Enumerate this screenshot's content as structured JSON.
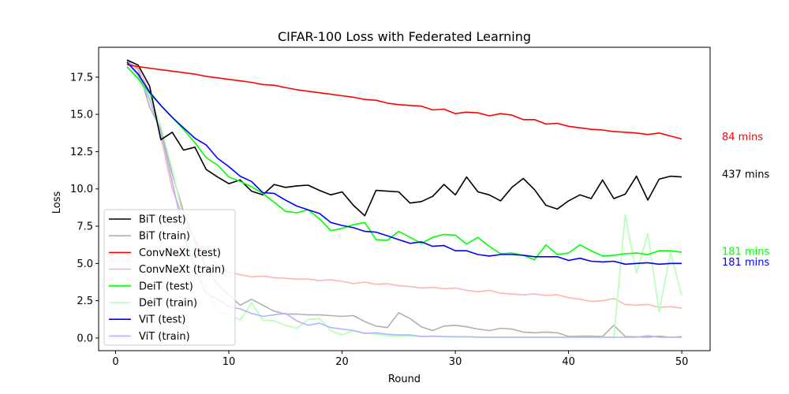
{
  "chart_data": {
    "type": "line",
    "title": "CIFAR-100 Loss with Federated Learning",
    "xlabel": "Round",
    "ylabel": "Loss",
    "xlim": [
      -1.5,
      52.5
    ],
    "ylim": [
      -0.85,
      19.5
    ],
    "xticks": [
      0,
      10,
      20,
      30,
      40,
      50
    ],
    "yticks": [
      0.0,
      2.5,
      5.0,
      7.5,
      10.0,
      12.5,
      15.0,
      17.5
    ],
    "xtick_labels": [
      "0",
      "10",
      "20",
      "30",
      "40",
      "50"
    ],
    "ytick_labels": [
      "0.0",
      "2.5",
      "5.0",
      "7.5",
      "10.0",
      "12.5",
      "15.0",
      "17.5"
    ],
    "grid": false,
    "legend_position": "lower-left",
    "x": [
      1,
      2,
      3,
      4,
      5,
      6,
      7,
      8,
      9,
      10,
      11,
      12,
      13,
      14,
      15,
      16,
      17,
      18,
      19,
      20,
      21,
      22,
      23,
      24,
      25,
      26,
      27,
      28,
      29,
      30,
      31,
      32,
      33,
      34,
      35,
      36,
      37,
      38,
      39,
      40,
      41,
      42,
      43,
      44,
      45,
      46,
      47,
      48,
      49,
      50
    ],
    "series": [
      {
        "name": "BiT (test)",
        "color": "#000000",
        "values": [
          18.65,
          18.3,
          16.9,
          13.3,
          13.8,
          12.6,
          12.8,
          11.3,
          10.8,
          10.35,
          10.6,
          9.85,
          9.6,
          10.3,
          10.1,
          10.2,
          10.25,
          9.9,
          9.6,
          9.8,
          8.9,
          8.2,
          9.9,
          9.85,
          9.8,
          9.05,
          9.15,
          9.5,
          10.3,
          9.6,
          10.8,
          9.8,
          9.6,
          9.2,
          10.1,
          10.7,
          9.95,
          8.9,
          8.65,
          9.2,
          9.6,
          9.35,
          10.6,
          9.35,
          9.65,
          10.85,
          9.25,
          10.65,
          10.85,
          10.8
        ]
      },
      {
        "name": "BiT (train)",
        "color": "#b0b0b0",
        "values": [
          18.6,
          18.0,
          15.5,
          14.0,
          11.0,
          8.5,
          6.5,
          4.7,
          3.6,
          2.9,
          2.2,
          2.6,
          2.2,
          1.8,
          1.6,
          1.6,
          1.55,
          1.55,
          1.5,
          1.45,
          1.5,
          1.1,
          0.8,
          0.7,
          1.7,
          1.3,
          0.75,
          0.5,
          0.8,
          0.85,
          0.75,
          0.6,
          0.5,
          0.65,
          0.6,
          0.4,
          0.35,
          0.4,
          0.35,
          0.1,
          0.12,
          0.12,
          0.1,
          0.85,
          0.1,
          0.08,
          0.05,
          0.12,
          0.05,
          0.05
        ]
      },
      {
        "name": "ConvNeXt (test)",
        "color": "#ff0000",
        "values": [
          18.35,
          18.2,
          18.1,
          18.0,
          17.9,
          17.8,
          17.7,
          17.55,
          17.45,
          17.35,
          17.25,
          17.15,
          17.0,
          16.95,
          16.8,
          16.65,
          16.55,
          16.45,
          16.35,
          16.25,
          16.15,
          16.0,
          15.95,
          15.75,
          15.65,
          15.6,
          15.55,
          15.3,
          15.35,
          15.05,
          15.15,
          15.1,
          14.9,
          15.05,
          14.95,
          14.65,
          14.65,
          14.35,
          14.4,
          14.2,
          14.1,
          14.0,
          13.95,
          13.85,
          13.8,
          13.75,
          13.65,
          13.75,
          13.55,
          13.35
        ]
      },
      {
        "name": "ConvNeXt (train)",
        "color": "#ffb3b3",
        "values": [
          18.35,
          18.1,
          16.5,
          13.5,
          10.0,
          8.0,
          6.6,
          5.6,
          4.9,
          4.4,
          4.25,
          4.1,
          4.15,
          4.05,
          4.0,
          3.95,
          3.95,
          3.85,
          3.9,
          3.8,
          3.65,
          3.75,
          3.6,
          3.65,
          3.5,
          3.45,
          3.35,
          3.4,
          3.3,
          3.35,
          3.2,
          3.1,
          3.2,
          3.0,
          2.95,
          2.9,
          2.95,
          2.85,
          2.9,
          2.7,
          2.6,
          2.45,
          2.5,
          2.65,
          2.25,
          2.2,
          2.25,
          2.05,
          2.1,
          2.0
        ]
      },
      {
        "name": "DeiT (test)",
        "color": "#00ff00",
        "values": [
          18.2,
          17.4,
          16.4,
          15.6,
          14.8,
          14.0,
          13.1,
          12.1,
          11.6,
          10.8,
          10.5,
          10.15,
          9.7,
          9.1,
          8.5,
          8.4,
          8.6,
          8.0,
          7.2,
          7.35,
          7.6,
          7.75,
          6.6,
          6.55,
          7.15,
          6.75,
          6.35,
          6.75,
          6.95,
          6.9,
          6.3,
          6.75,
          6.15,
          5.65,
          5.7,
          5.55,
          5.25,
          6.25,
          5.6,
          5.7,
          6.25,
          5.85,
          5.5,
          5.55,
          5.65,
          5.7,
          5.6,
          5.85,
          5.85,
          5.75
        ]
      },
      {
        "name": "DeiT (train)",
        "color": "#b3ffb3",
        "values": [
          18.2,
          17.3,
          16.2,
          14.2,
          11.3,
          8.0,
          5.1,
          3.4,
          1.75,
          1.6,
          1.2,
          2.35,
          1.2,
          1.15,
          0.85,
          0.65,
          1.25,
          1.3,
          0.5,
          0.2,
          0.5,
          0.35,
          0.25,
          0.15,
          0.12,
          0.15,
          0.1,
          0.1,
          0.08,
          0.08,
          0.08,
          0.05,
          0.05,
          0.05,
          0.05,
          0.05,
          0.05,
          0.05,
          0.05,
          0.05,
          0.05,
          0.05,
          0.05,
          0.05,
          8.25,
          4.35,
          7.0,
          1.75,
          5.75,
          2.85
        ]
      },
      {
        "name": "ViT (test)",
        "color": "#0000ff",
        "values": [
          18.5,
          17.7,
          16.5,
          15.6,
          14.8,
          14.1,
          13.4,
          12.95,
          12.05,
          11.5,
          10.85,
          10.5,
          9.75,
          9.7,
          9.25,
          8.85,
          8.6,
          8.35,
          7.75,
          7.55,
          7.4,
          7.15,
          7.1,
          6.85,
          6.6,
          6.35,
          6.45,
          6.15,
          6.2,
          5.85,
          5.85,
          5.6,
          5.5,
          5.6,
          5.6,
          5.55,
          5.45,
          5.45,
          5.45,
          5.2,
          5.35,
          5.15,
          5.1,
          5.15,
          4.95,
          5.0,
          5.05,
          4.95,
          5.0,
          5.0
        ]
      },
      {
        "name": "ViT (train)",
        "color": "#b3b3ff",
        "values": [
          18.5,
          17.6,
          16.0,
          13.8,
          10.5,
          7.0,
          4.6,
          3.0,
          2.6,
          2.1,
          1.95,
          1.65,
          1.45,
          1.55,
          1.65,
          1.15,
          0.85,
          1.0,
          0.7,
          0.6,
          0.5,
          0.3,
          0.35,
          0.25,
          0.2,
          0.2,
          0.1,
          0.12,
          0.1,
          0.08,
          0.08,
          0.06,
          0.05,
          0.05,
          0.05,
          0.05,
          0.05,
          0.05,
          0.05,
          0.05,
          0.05,
          0.05,
          0.05,
          0.05,
          0.05,
          0.05,
          0.15,
          0.05,
          0.05,
          0.1
        ]
      }
    ],
    "annotations": [
      {
        "text": "84 mins",
        "y": 13.5,
        "color": "#ff0000"
      },
      {
        "text": "437 mins",
        "y": 11.0,
        "color": "#000000"
      },
      {
        "text": "181 mins",
        "y": 5.8,
        "color": "#00ff00"
      },
      {
        "text": "181 mins",
        "y": 5.1,
        "color": "#0000ff"
      }
    ]
  }
}
